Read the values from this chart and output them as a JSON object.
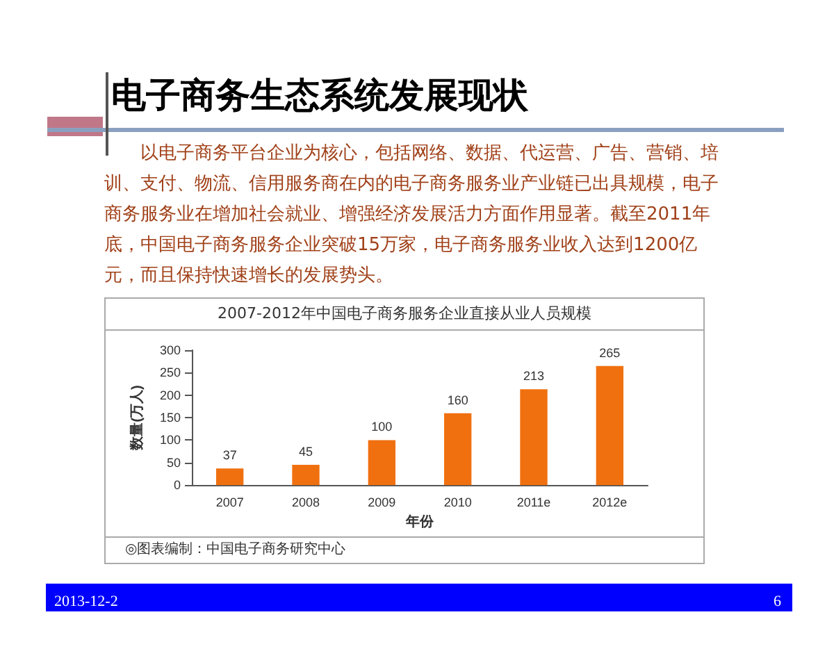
{
  "chart_data": {
    "type": "bar",
    "title": "电子商务生态系统发展现状",
    "subtitle": "2007-2012年中国电子商务服务企业直接从业人员规模",
    "annotations": [
      "以电子商务平台企业为核心，包括网络、数据、代运营、广告、营销、培训、支付、物流、信用服务商在内的电子商务服务业产业链已出具规模，电子商务服务业在增加社会就业、增强经济发展活力方面作用显著。截至2011年底，中国电子商务服务企业突破15万家，电子商务服务业收入达到1200亿元，而且保持快速增长的发展势头。",
      "◎图表编制：中国电子商务研究中心",
      "2013-12-2",
      "6"
    ],
    "xlabel": "年份",
    "ylabel": "数量(万人)",
    "categories": [
      "2007",
      "2008",
      "2009",
      "2010",
      "2011e",
      "2012e"
    ],
    "values": [
      37,
      45,
      100,
      160,
      213,
      265
    ],
    "color": "#f07010",
    "ylim": [
      0,
      300
    ],
    "yticks": [
      0,
      50,
      100,
      150,
      200,
      250,
      300
    ],
    "grid": false,
    "data_labels": true
  }
}
